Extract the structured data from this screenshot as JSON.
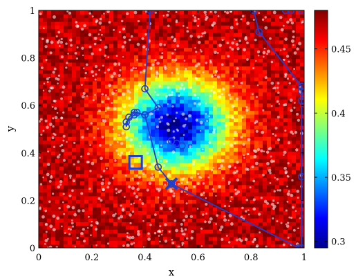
{
  "chart_data": {
    "type": "line",
    "xlabel": "x",
    "ylabel": "y",
    "xlim": [
      0,
      1
    ],
    "ylim": [
      0,
      1
    ],
    "x_ticks": [
      "0",
      "0.2",
      "0.4",
      "0.6",
      "0.8",
      "1"
    ],
    "y_ticks": [
      "0",
      "0.2",
      "0.4",
      "0.6",
      "0.8",
      "1"
    ],
    "colorbar": {
      "range": [
        0.295,
        0.48
      ],
      "ticks": [
        "0.3",
        "0.35",
        "0.4",
        "0.45"
      ],
      "colormap": "jet"
    },
    "heatmap_background": {
      "description_values": "noisy field, low (~0.30) near center (0.52, 0.52), high (~0.46) toward edges",
      "center": [
        0.52,
        0.52
      ],
      "min": 0.3,
      "max": 0.47
    },
    "path": {
      "color": "#1f3fd0",
      "points": [
        [
          0.5,
          0.27
        ],
        [
          0.45,
          0.34
        ],
        [
          0.4,
          0.56
        ],
        [
          0.37,
          0.57
        ],
        [
          0.36,
          0.56
        ],
        [
          0.33,
          0.53
        ],
        [
          0.33,
          0.51
        ],
        [
          0.34,
          0.55
        ],
        [
          0.36,
          0.57
        ],
        [
          0.4,
          0.56
        ],
        [
          0.45,
          0.59
        ],
        [
          0.4,
          0.67
        ],
        [
          0.42,
          1.0
        ],
        [
          0.81,
          1.0
        ],
        [
          0.83,
          0.91
        ],
        [
          0.99,
          0.68
        ],
        [
          0.99,
          0.66
        ],
        [
          0.99,
          0.62
        ],
        [
          0.99,
          0.3
        ],
        [
          0.99,
          0.0
        ],
        [
          0.98,
          0.0
        ],
        [
          0.5,
          0.27
        ]
      ]
    },
    "extra_points": [
      [
        0.93,
        1.0
      ],
      [
        0.95,
        1.0
      ],
      [
        0.99,
        1.0
      ],
      [
        0.54,
        0.43
      ],
      [
        0.5,
        0.45
      ],
      [
        0.52,
        0.44
      ]
    ],
    "start_marker": {
      "shape": "square",
      "x": 0.365,
      "y": 0.36
    },
    "end_marker": {
      "shape": "x",
      "x": 0.5,
      "y": 0.27
    }
  }
}
